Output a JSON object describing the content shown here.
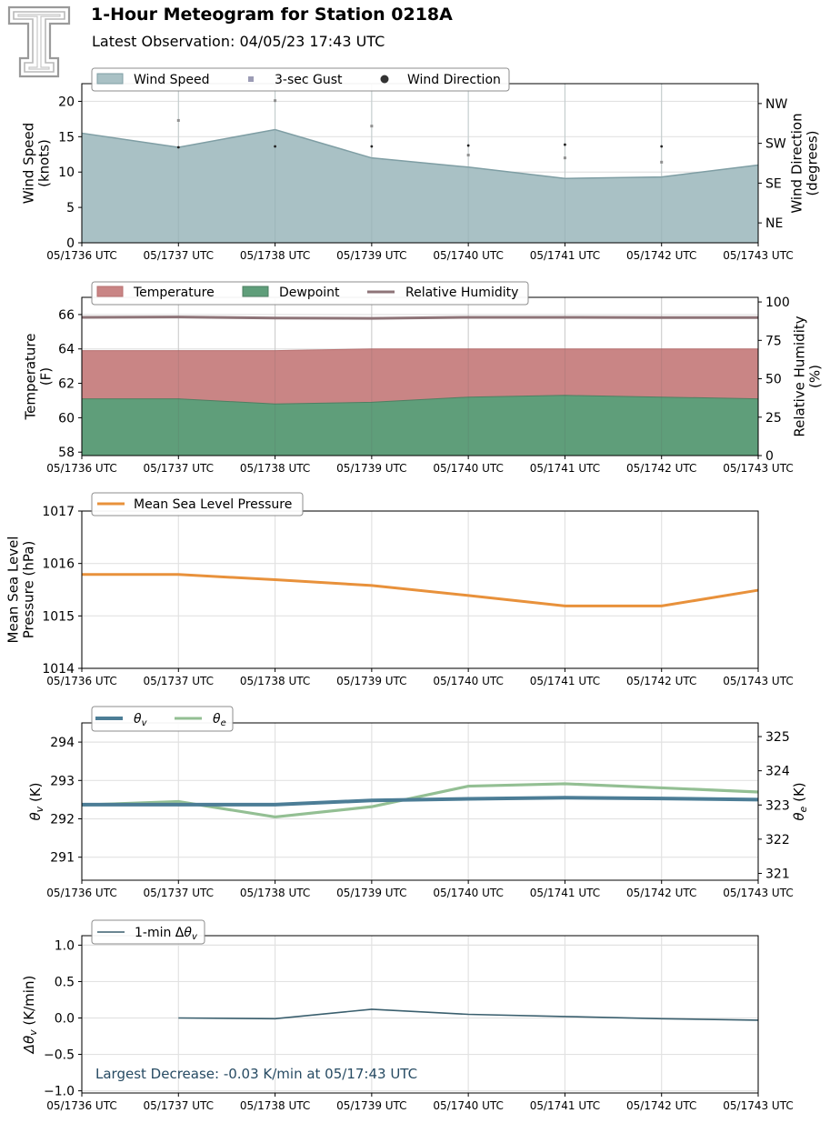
{
  "header": {
    "title": "1-Hour Meteogram for Station 0218A",
    "subtitle": "Latest Observation: 04/05/23 17:43 UTC",
    "logo": "texas-tech-double-t-logo"
  },
  "colors": {
    "wind_fill": "#a9c1c5",
    "wind_line": "#7f9ea4",
    "gust": "#8f8f8f",
    "direction": "#222222",
    "temperature": "#c98585",
    "dewpoint": "#5f9e7a",
    "rh": "#8e7478",
    "pressure": "#e8913b",
    "theta_v": "#4c7d96",
    "theta_e": "#93bf93",
    "dtheta": "#3a5f6e",
    "annotation": "#274b63"
  },
  "x_ticks": [
    "05/1736 UTC",
    "05/1737 UTC",
    "05/1738 UTC",
    "05/1739 UTC",
    "05/1740 UTC",
    "05/1741 UTC",
    "05/1742 UTC",
    "05/1743 UTC"
  ],
  "chart_data": [
    {
      "type": "area",
      "ylabel": "Wind Speed\n(knots)",
      "y2label": "Wind Direction\n(degrees)",
      "ylim": [
        0,
        22.5
      ],
      "yticks": [
        0,
        5,
        10,
        15,
        20
      ],
      "y2lim": [
        0,
        360
      ],
      "y2ticks": [
        {
          "value": 45,
          "label": "NE"
        },
        {
          "value": 135,
          "label": "SE"
        },
        {
          "value": 225,
          "label": "SW"
        },
        {
          "value": 315,
          "label": "NW"
        }
      ],
      "grid": true,
      "legend": "top-left",
      "series": [
        {
          "name": "Wind Speed",
          "kind": "area",
          "values": [
            15.5,
            13.5,
            16.0,
            12.0,
            10.7,
            9.1,
            9.3,
            11.0
          ]
        },
        {
          "name": "3-sec Gust",
          "kind": "points",
          "values": [
            null,
            17.3,
            20.1,
            16.5,
            12.4,
            12.0,
            11.4,
            null
          ]
        },
        {
          "name": "Wind Direction",
          "kind": "points",
          "axis": "right",
          "values": [
            null,
            216,
            218,
            218,
            220,
            222,
            218,
            null
          ]
        }
      ]
    },
    {
      "type": "area",
      "ylabel": "Temperature\n(F)",
      "y2label": "Relative Humidity\n(%)",
      "ylim": [
        57.8,
        67.0
      ],
      "yticks": [
        58,
        60,
        62,
        64,
        66
      ],
      "y2lim": [
        0,
        103
      ],
      "y2ticks": [
        {
          "value": 0,
          "label": "0"
        },
        {
          "value": 25,
          "label": "25"
        },
        {
          "value": 50,
          "label": "50"
        },
        {
          "value": 75,
          "label": "75"
        },
        {
          "value": 100,
          "label": "100"
        }
      ],
      "grid": true,
      "legend": "top-left",
      "series": [
        {
          "name": "Temperature",
          "kind": "area",
          "values": [
            63.9,
            63.9,
            63.9,
            64.0,
            64.0,
            64.0,
            64.0,
            64.0
          ]
        },
        {
          "name": "Dewpoint",
          "kind": "area",
          "values": [
            61.1,
            61.1,
            60.8,
            60.9,
            61.2,
            61.3,
            61.2,
            61.1
          ]
        },
        {
          "name": "Relative Humidity",
          "kind": "line",
          "axis": "right",
          "values": [
            90,
            90.2,
            89.5,
            89.3,
            90,
            90,
            89.8,
            89.8
          ]
        }
      ]
    },
    {
      "type": "line",
      "ylabel": "Mean Sea Level\nPressure (hPa)",
      "ylim": [
        1014,
        1017
      ],
      "yticks": [
        1014,
        1015,
        1016,
        1017
      ],
      "grid": true,
      "legend": "top-left",
      "series": [
        {
          "name": "Mean Sea Level Pressure",
          "values": [
            1015.79,
            1015.79,
            1015.69,
            1015.58,
            1015.39,
            1015.19,
            1015.19,
            1015.49
          ]
        }
      ]
    },
    {
      "type": "line",
      "ylabel": "θv (K)",
      "y2label": "θe (K)",
      "ylim": [
        290.4,
        294.5
      ],
      "yticks": [
        291,
        292,
        293,
        294
      ],
      "y2lim": [
        320.8,
        325.4
      ],
      "y2ticks": [
        {
          "value": 321,
          "label": "321"
        },
        {
          "value": 322,
          "label": "322"
        },
        {
          "value": 323,
          "label": "323"
        },
        {
          "value": 324,
          "label": "324"
        },
        {
          "value": 325,
          "label": "325"
        }
      ],
      "grid": true,
      "legend": "top-left",
      "series": [
        {
          "name": "θv",
          "legend_sub": "v",
          "axis": "left",
          "values": [
            292.37,
            292.37,
            292.37,
            292.48,
            292.52,
            292.55,
            292.53,
            292.5
          ]
        },
        {
          "name": "θe",
          "legend_sub": "e",
          "axis": "right",
          "values": [
            323.0,
            323.1,
            322.65,
            322.95,
            323.55,
            323.62,
            323.5,
            323.38
          ]
        }
      ]
    },
    {
      "type": "line",
      "ylabel": "Δθv (K/min)",
      "ylim": [
        -1.03,
        1.13
      ],
      "yticks": [
        -1.0,
        -0.5,
        0.0,
        0.5,
        1.0
      ],
      "grid": true,
      "legend": "top-left",
      "annotation": "Largest Decrease: -0.03 K/min at 05/17:43 UTC",
      "series": [
        {
          "name": "1-min Δθv",
          "values": [
            null,
            0.0,
            -0.01,
            0.12,
            0.05,
            0.02,
            -0.01,
            -0.03
          ]
        }
      ]
    }
  ]
}
